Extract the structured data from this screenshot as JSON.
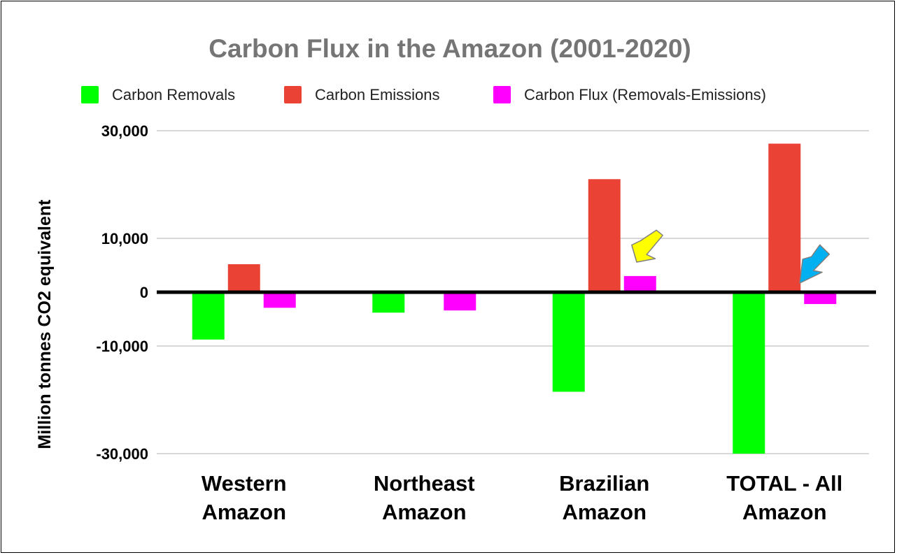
{
  "chart_data": {
    "type": "bar",
    "title": "Carbon Flux in the Amazon (2001-2020)",
    "xlabel": "",
    "ylabel": "Million tonnes CO2 equivalent",
    "categories": [
      [
        "Western",
        "Amazon"
      ],
      [
        "Northeast",
        "Amazon"
      ],
      [
        "Brazilian",
        "Amazon"
      ],
      [
        "TOTAL - All",
        "Amazon"
      ]
    ],
    "series": [
      {
        "name": "Carbon Removals",
        "color": "#00ff00",
        "values": [
          -8800,
          -3800,
          -18500,
          -30000
        ]
      },
      {
        "name": "Carbon Emissions",
        "color": "#ea4335",
        "values": [
          5200,
          0,
          21000,
          27600
        ]
      },
      {
        "name": "Carbon Flux (Removals-Emissions)",
        "color": "#ff00ff",
        "values": [
          -2900,
          -3400,
          3000,
          -2200
        ]
      }
    ],
    "yticks": [
      {
        "value": 30000,
        "label": "30,000"
      },
      {
        "value": 10000,
        "label": "10,000"
      },
      {
        "value": 0,
        "label": "0"
      },
      {
        "value": -10000,
        "label": "-10,000"
      },
      {
        "value": -30000,
        "label": "-30,000"
      }
    ],
    "ylim": [
      -30000,
      30000
    ],
    "grid": true,
    "legend": "top",
    "annotations": [
      {
        "type": "arrow",
        "color": "#ffff00",
        "points_to": "Brazilian Amazon - Carbon Flux"
      },
      {
        "type": "arrow",
        "color": "#00b0f0",
        "points_to": "TOTAL - All Amazon - Carbon Flux"
      }
    ]
  }
}
